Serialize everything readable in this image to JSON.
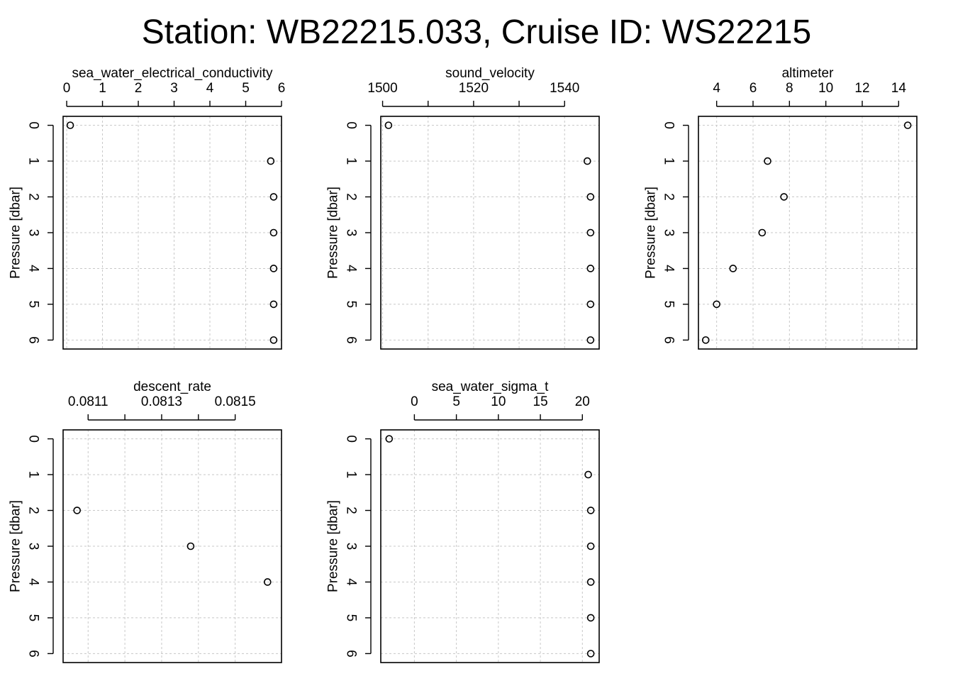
{
  "title": "Station: WB22215.033, Cruise ID: WS22215",
  "chart_data": [
    {
      "type": "scatter",
      "title": "sea_water_electrical_conductivity",
      "ylabel": "Pressure [dbar]",
      "xlim": [
        -0.1,
        6.0
      ],
      "ylim": [
        -0.25,
        6.25
      ],
      "y_reversed": true,
      "xticks": [
        0,
        1,
        2,
        3,
        4,
        5,
        6
      ],
      "yticks": [
        0,
        1,
        2,
        3,
        4,
        5,
        6
      ],
      "grid": true,
      "points": [
        {
          "x": 0.1,
          "y": 0
        },
        {
          "x": 5.7,
          "y": 1
        },
        {
          "x": 5.78,
          "y": 2
        },
        {
          "x": 5.78,
          "y": 3
        },
        {
          "x": 5.78,
          "y": 4
        },
        {
          "x": 5.78,
          "y": 5
        },
        {
          "x": 5.78,
          "y": 6
        }
      ]
    },
    {
      "type": "scatter",
      "title": "sound_velocity",
      "ylabel": "Pressure [dbar]",
      "xlim": [
        1499.6,
        1547.6
      ],
      "ylim": [
        -0.25,
        6.25
      ],
      "y_reversed": true,
      "xticks": [
        1500,
        1510,
        1520,
        1530,
        1540
      ],
      "xticklabels": [
        "1500",
        "",
        "1520",
        "",
        "1540"
      ],
      "yticks": [
        0,
        1,
        2,
        3,
        4,
        5,
        6
      ],
      "grid": true,
      "points": [
        {
          "x": 1501.3,
          "y": 0
        },
        {
          "x": 1545.0,
          "y": 1
        },
        {
          "x": 1545.7,
          "y": 2
        },
        {
          "x": 1545.7,
          "y": 3
        },
        {
          "x": 1545.7,
          "y": 4
        },
        {
          "x": 1545.7,
          "y": 5
        },
        {
          "x": 1545.7,
          "y": 6
        }
      ]
    },
    {
      "type": "scatter",
      "title": "altimeter",
      "ylabel": "Pressure [dbar]",
      "xlim": [
        3.0,
        15.0
      ],
      "ylim": [
        -0.25,
        6.25
      ],
      "y_reversed": true,
      "xticks": [
        4,
        6,
        8,
        10,
        12,
        14
      ],
      "yticks": [
        0,
        1,
        2,
        3,
        4,
        5,
        6
      ],
      "grid": true,
      "points": [
        {
          "x": 14.5,
          "y": 0
        },
        {
          "x": 6.8,
          "y": 1
        },
        {
          "x": 7.7,
          "y": 2
        },
        {
          "x": 6.5,
          "y": 3
        },
        {
          "x": 4.9,
          "y": 4
        },
        {
          "x": 4.0,
          "y": 5
        },
        {
          "x": 3.4,
          "y": 6
        }
      ]
    },
    {
      "type": "scatter",
      "title": "descent_rate",
      "ylabel": "Pressure [dbar]",
      "xlim": [
        0.081032,
        0.081626
      ],
      "ylim": [
        -0.25,
        6.25
      ],
      "y_reversed": true,
      "xticks": [
        0.0811,
        0.0812,
        0.0813,
        0.0814,
        0.0815
      ],
      "xticklabels": [
        "0.0811",
        "",
        "0.0813",
        "",
        "0.0815"
      ],
      "yticks": [
        0,
        1,
        2,
        3,
        4,
        5,
        6
      ],
      "grid": true,
      "points": [
        {
          "x": 0.08107,
          "y": 2
        },
        {
          "x": 0.081379,
          "y": 3
        },
        {
          "x": 0.081588,
          "y": 4
        }
      ]
    },
    {
      "type": "scatter",
      "title": "sea_water_sigma_t",
      "ylabel": "Pressure [dbar]",
      "xlim": [
        -4.0,
        22.0
      ],
      "ylim": [
        -0.25,
        6.25
      ],
      "y_reversed": true,
      "xticks": [
        0,
        5,
        10,
        15,
        20
      ],
      "yticks": [
        0,
        1,
        2,
        3,
        4,
        5,
        6
      ],
      "grid": true,
      "points": [
        {
          "x": -3.0,
          "y": 0
        },
        {
          "x": 20.7,
          "y": 1
        },
        {
          "x": 21.0,
          "y": 2
        },
        {
          "x": 21.0,
          "y": 3
        },
        {
          "x": 21.0,
          "y": 4
        },
        {
          "x": 21.0,
          "y": 5
        },
        {
          "x": 21.0,
          "y": 6
        }
      ]
    }
  ]
}
